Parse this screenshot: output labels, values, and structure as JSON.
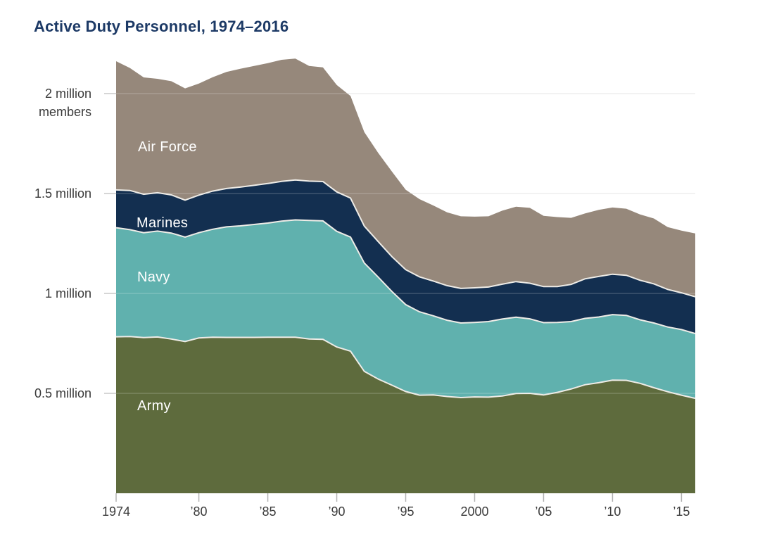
{
  "chart_data": {
    "type": "area",
    "stacked": true,
    "title": "Active Duty Personnel, 1974–2016",
    "values_unit": "thousands of members",
    "x_years": [
      1974,
      1975,
      1976,
      1977,
      1978,
      1979,
      1980,
      1981,
      1982,
      1983,
      1984,
      1985,
      1986,
      1987,
      1988,
      1989,
      1990,
      1991,
      1992,
      1993,
      1994,
      1995,
      1996,
      1997,
      1998,
      1999,
      2000,
      2001,
      2002,
      2003,
      2004,
      2005,
      2006,
      2007,
      2008,
      2009,
      2010,
      2011,
      2012,
      2013,
      2014,
      2015,
      2016
    ],
    "xlim": [
      1974,
      2016
    ],
    "ylim": [
      0,
      2200
    ],
    "grid": true,
    "legend": "labels-on-areas",
    "series": [
      {
        "name": "Army",
        "color": "#5e6b3d",
        "values": [
          783,
          784,
          779,
          782,
          772,
          759,
          777,
          781,
          780,
          780,
          780,
          781,
          781,
          781,
          772,
          770,
          732,
          711,
          610,
          572,
          541,
          509,
          491,
          492,
          484,
          479,
          482,
          481,
          487,
          499,
          500,
          492,
          505,
          522,
          543,
          553,
          566,
          565,
          550,
          528,
          508,
          491,
          475
        ]
      },
      {
        "name": "Navy",
        "color": "#60b1ae",
        "values": [
          546,
          535,
          525,
          530,
          530,
          523,
          527,
          540,
          553,
          558,
          565,
          571,
          581,
          587,
          593,
          593,
          579,
          571,
          542,
          510,
          469,
          435,
          417,
          396,
          382,
          373,
          373,
          378,
          385,
          382,
          373,
          362,
          350,
          337,
          332,
          329,
          328,
          325,
          318,
          324,
          324,
          328,
          324
        ]
      },
      {
        "name": "Marines",
        "color": "#132f50",
        "values": [
          189,
          196,
          192,
          192,
          191,
          185,
          188,
          191,
          192,
          194,
          196,
          198,
          199,
          200,
          197,
          197,
          197,
          195,
          185,
          178,
          174,
          175,
          175,
          174,
          173,
          173,
          173,
          173,
          174,
          178,
          178,
          180,
          179,
          186,
          198,
          203,
          202,
          201,
          198,
          196,
          188,
          184,
          184
        ]
      },
      {
        "name": "Air Force",
        "color": "#96887b",
        "values": [
          644,
          613,
          585,
          570,
          569,
          559,
          558,
          570,
          583,
          592,
          597,
          602,
          608,
          607,
          576,
          571,
          535,
          511,
          470,
          444,
          426,
          400,
          389,
          378,
          367,
          361,
          356,
          354,
          368,
          375,
          377,
          354,
          348,
          333,
          327,
          333,
          334,
          333,
          329,
          327,
          312,
          311,
          317
        ]
      }
    ],
    "y_ticks": [
      {
        "value": 2000,
        "lines": [
          "2 million",
          "members"
        ]
      },
      {
        "value": 1500,
        "lines": [
          "1.5 million"
        ]
      },
      {
        "value": 1000,
        "lines": [
          "1 million"
        ]
      },
      {
        "value": 500,
        "lines": [
          "0.5 million"
        ]
      }
    ],
    "x_ticks": [
      {
        "year": 1974,
        "label": "1974"
      },
      {
        "year": 1980,
        "label": "’80"
      },
      {
        "year": 1985,
        "label": "’85"
      },
      {
        "year": 1990,
        "label": "’90"
      },
      {
        "year": 1995,
        "label": "’95"
      },
      {
        "year": 2000,
        "label": "2000"
      },
      {
        "year": 2005,
        "label": "’05"
      },
      {
        "year": 2010,
        "label": "’10"
      },
      {
        "year": 2015,
        "label": "’15"
      }
    ],
    "styles": {
      "background": "#ffffff",
      "title_color": "#1d3a66",
      "axis_text": "#3b3b3b",
      "separator": "#eeece7",
      "grid_under": "#dcdcdc",
      "grid_over": "rgba(255,255,255,0.28)",
      "tick_y": "#c8c8c8",
      "tick_x": "#b3b3b3",
      "series_label_color": "#ffffff"
    }
  }
}
